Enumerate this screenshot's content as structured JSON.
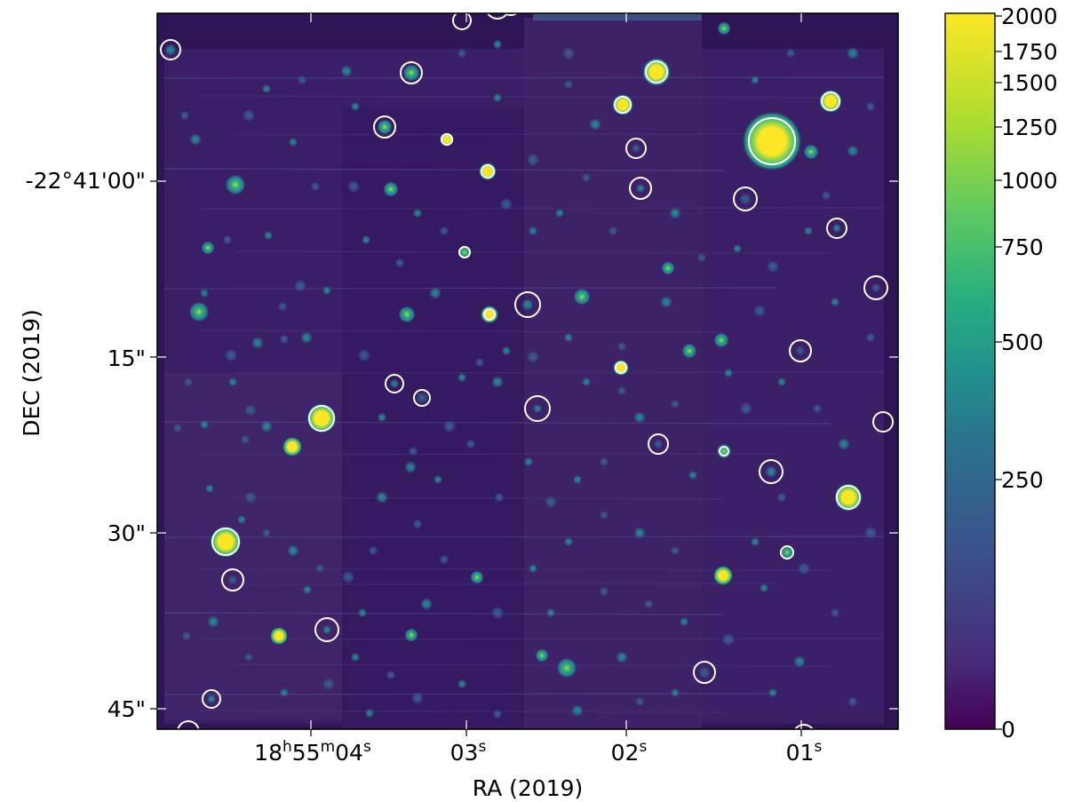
{
  "plot": {
    "xlabel": "RA (2019)",
    "ylabel": "DEC (2019)",
    "x_ticks": [
      {
        "label": "18h55m04s",
        "hms": [
          "18",
          "h",
          "55",
          "m",
          "04",
          "s"
        ]
      },
      {
        "label": "03s",
        "hms": [
          "03",
          "s"
        ]
      },
      {
        "label": "02s",
        "hms": [
          "02",
          "s"
        ]
      },
      {
        "label": "01s",
        "hms": [
          "01",
          "s"
        ]
      }
    ],
    "y_ticks": [
      "-22°41'00\"",
      "15\"",
      "30\"",
      "45\""
    ]
  },
  "colorbar": {
    "ticks": [
      "2000",
      "1750",
      "1500",
      "1250",
      "1000",
      "750",
      "500",
      "250",
      "0"
    ],
    "range": [
      0,
      2000
    ],
    "colormap": "viridis",
    "colors": [
      "#440154",
      "#3b528b",
      "#21918c",
      "#5ec962",
      "#fde725"
    ]
  },
  "image": {
    "background_color": "#3a1e66",
    "marker_color": "#ffffff"
  }
}
